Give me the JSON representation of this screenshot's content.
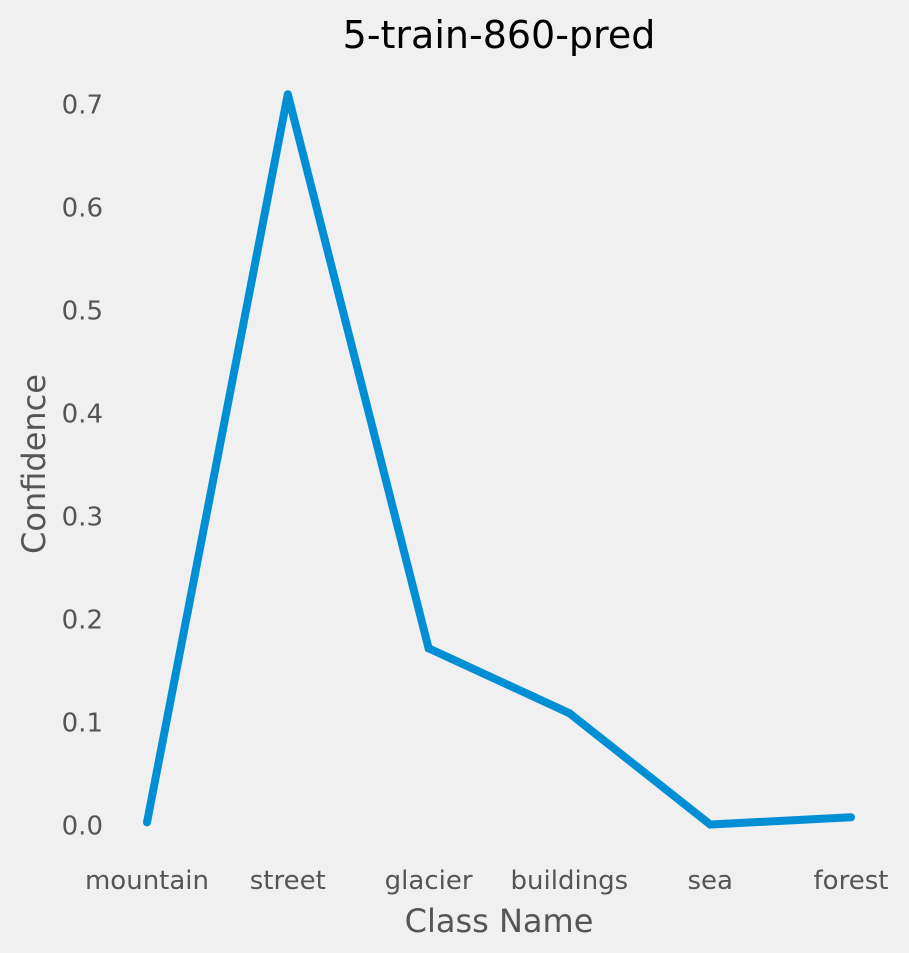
{
  "colors": {
    "background": "#f0f0f0",
    "line": "#008fd5",
    "text": "#555555",
    "title": "#000000"
  },
  "chart_data": {
    "type": "line",
    "title": "5-train-860-pred",
    "xlabel": "Class Name",
    "ylabel": "Confidence",
    "categories": [
      "mountain",
      "street",
      "glacier",
      "buildings",
      "sea",
      "forest"
    ],
    "values": [
      0.003,
      0.71,
      0.172,
      0.109,
      0.001,
      0.008
    ],
    "yticks": [
      "0.0",
      "0.1",
      "0.2",
      "0.3",
      "0.4",
      "0.5",
      "0.6",
      "0.7"
    ],
    "ylim": [
      -0.03,
      0.74
    ],
    "grid": false
  }
}
